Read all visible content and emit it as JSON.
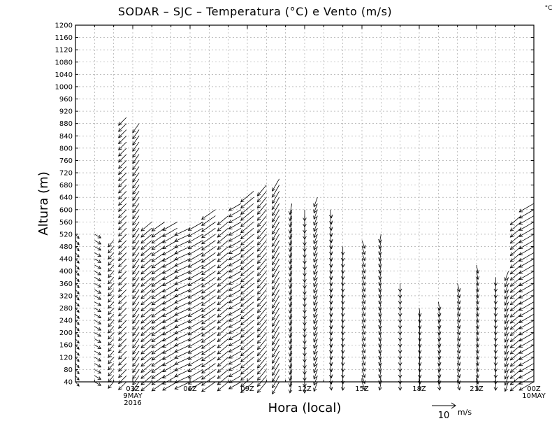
{
  "chart_data": {
    "type": "wind-barb",
    "title": "SODAR – SJC – Temperatura (°C) e Vento (m/s)",
    "corner_unit": "°C",
    "xlabel": "Hora (local)",
    "ylabel": "Altura (m)",
    "ylim": [
      40,
      1200
    ],
    "xlim": [
      0,
      24
    ],
    "y_ticks": [
      "40",
      "80",
      "120",
      "160",
      "200",
      "240",
      "280",
      "320",
      "360",
      "400",
      "440",
      "480",
      "520",
      "560",
      "600",
      "640",
      "680",
      "720",
      "760",
      "800",
      "840",
      "880",
      "920",
      "960",
      "1000",
      "1040",
      "1080",
      "1120",
      "1160",
      "1200"
    ],
    "x_ticks": [
      {
        "x": 3,
        "lines": [
          "03Z",
          "9MAY",
          "2016"
        ]
      },
      {
        "x": 6,
        "lines": [
          "06Z"
        ]
      },
      {
        "x": 9,
        "lines": [
          "09Z"
        ]
      },
      {
        "x": 12,
        "lines": [
          "12Z"
        ]
      },
      {
        "x": 15,
        "lines": [
          "15Z"
        ]
      },
      {
        "x": 18,
        "lines": [
          "18Z"
        ]
      },
      {
        "x": 21,
        "lines": [
          "21Z"
        ]
      },
      {
        "x": 24,
        "lines": [
          "00Z",
          "10MAY"
        ]
      }
    ],
    "grid": true,
    "reference_vector": {
      "label": "10",
      "unit": "m/s"
    },
    "colors": {
      "line": "#000000",
      "grid": "#9a9a9a",
      "background": "#ffffff"
    },
    "columns": [
      {
        "x": 0.0,
        "top": 520,
        "dir": 140,
        "spd": 1.0
      },
      {
        "x": 1.0,
        "top": 520,
        "dir": 120,
        "spd": 1.3
      },
      {
        "x": 2.0,
        "top": 500,
        "dir": 220,
        "spd": 1.5
      },
      {
        "x": 2.67,
        "top": 900,
        "dir": 225,
        "spd": 2.0
      },
      {
        "x": 3.33,
        "top": 880,
        "dir": 215,
        "spd": 2.0
      },
      {
        "x": 4.0,
        "top": 560,
        "dir": 230,
        "spd": 2.5
      },
      {
        "x": 4.67,
        "top": 560,
        "dir": 235,
        "spd": 2.8
      },
      {
        "x": 5.33,
        "top": 560,
        "dir": 240,
        "spd": 3.0
      },
      {
        "x": 6.0,
        "top": 540,
        "dir": 245,
        "spd": 3.0
      },
      {
        "x": 6.67,
        "top": 560,
        "dir": 240,
        "spd": 3.0
      },
      {
        "x": 7.33,
        "top": 600,
        "dir": 235,
        "spd": 3.0
      },
      {
        "x": 8.0,
        "top": 580,
        "dir": 230,
        "spd": 2.5
      },
      {
        "x": 8.67,
        "top": 620,
        "dir": 240,
        "spd": 2.5
      },
      {
        "x": 9.33,
        "top": 660,
        "dir": 230,
        "spd": 3.0
      },
      {
        "x": 10.0,
        "top": 680,
        "dir": 220,
        "spd": 2.5
      },
      {
        "x": 10.67,
        "top": 700,
        "dir": 210,
        "spd": 2.5
      },
      {
        "x": 11.33,
        "top": 620,
        "dir": 190,
        "spd": 2.0
      },
      {
        "x": 12.0,
        "top": 600,
        "dir": 180,
        "spd": 2.0
      },
      {
        "x": 12.67,
        "top": 640,
        "dir": 200,
        "spd": 1.8
      },
      {
        "x": 13.33,
        "top": 600,
        "dir": 170,
        "spd": 1.5
      },
      {
        "x": 14.0,
        "top": 480,
        "dir": 180,
        "spd": 1.5
      },
      {
        "x": 15.0,
        "top": 500,
        "dir": 160,
        "spd": 1.5
      },
      {
        "x": 16.0,
        "top": 520,
        "dir": 190,
        "spd": 1.5
      },
      {
        "x": 17.0,
        "top": 360,
        "dir": 180,
        "spd": 1.5
      },
      {
        "x": 18.0,
        "top": 280,
        "dir": 175,
        "spd": 1.5
      },
      {
        "x": 19.0,
        "top": 300,
        "dir": 170,
        "spd": 1.5
      },
      {
        "x": 20.0,
        "top": 360,
        "dir": 165,
        "spd": 1.5
      },
      {
        "x": 21.0,
        "top": 420,
        "dir": 170,
        "spd": 1.5
      },
      {
        "x": 22.0,
        "top": 380,
        "dir": 180,
        "spd": 1.5
      },
      {
        "x": 22.67,
        "top": 400,
        "dir": 200,
        "spd": 1.8
      },
      {
        "x": 23.33,
        "top": 580,
        "dir": 230,
        "spd": 2.5
      },
      {
        "x": 24.0,
        "top": 620,
        "dir": 240,
        "spd": 3.0
      }
    ]
  }
}
